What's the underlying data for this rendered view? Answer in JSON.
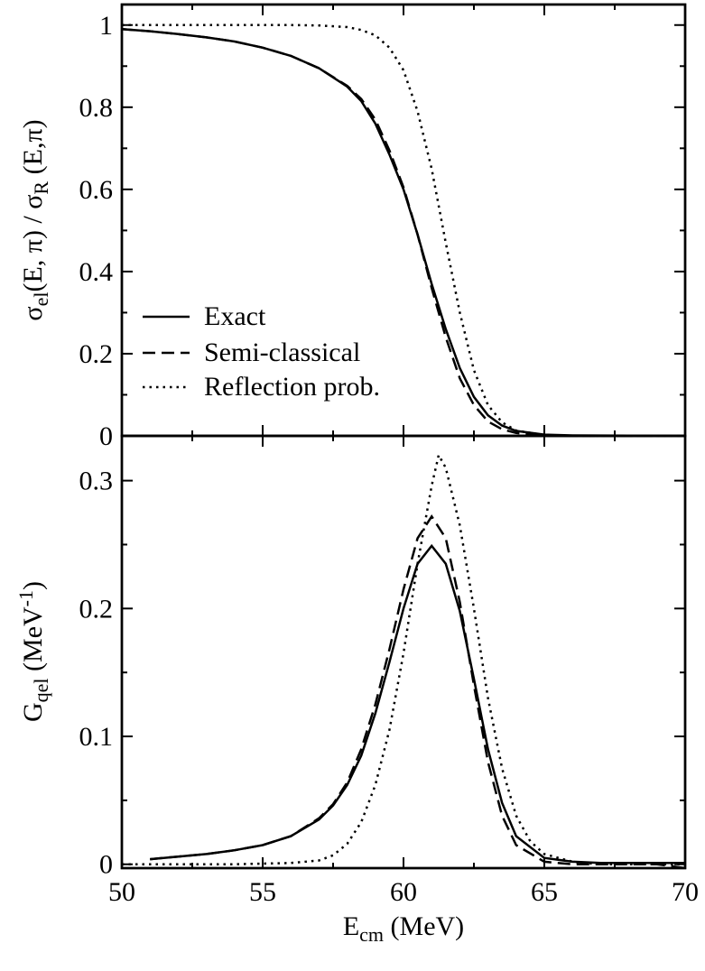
{
  "chart_data": [
    {
      "type": "line",
      "ylabel_parts": [
        "σ",
        "el",
        "(E, π) / σ",
        "R",
        " (E,π)"
      ],
      "xlim": [
        50,
        70
      ],
      "ylim": [
        0,
        1.05
      ],
      "yticks": [
        0,
        0.2,
        0.4,
        0.6,
        0.8,
        1
      ],
      "ytick_labels": [
        "0",
        "0.2",
        "0.4",
        "0.6",
        "0.8",
        "1"
      ],
      "legend_position": "lower-left",
      "series": [
        {
          "name": "Exact",
          "style": "solid",
          "x": [
            50,
            51,
            52,
            53,
            54,
            55,
            56,
            57,
            58,
            58.5,
            59,
            59.5,
            60,
            60.5,
            61,
            61.5,
            62,
            62.5,
            63,
            63.5,
            64,
            65,
            66,
            70
          ],
          "y": [
            0.99,
            0.985,
            0.978,
            0.97,
            0.96,
            0.945,
            0.925,
            0.895,
            0.85,
            0.815,
            0.76,
            0.685,
            0.6,
            0.49,
            0.37,
            0.26,
            0.165,
            0.095,
            0.05,
            0.025,
            0.012,
            0.003,
            0.001,
            0.0
          ]
        },
        {
          "name": "Semi-classical",
          "style": "dashed",
          "x": [
            50,
            51,
            52,
            53,
            54,
            55,
            56,
            57,
            58,
            58.5,
            59,
            59.5,
            60,
            60.5,
            61,
            61.5,
            62,
            62.5,
            63,
            63.5,
            64,
            65,
            66,
            70
          ],
          "y": [
            0.99,
            0.985,
            0.978,
            0.97,
            0.96,
            0.945,
            0.925,
            0.895,
            0.852,
            0.82,
            0.77,
            0.695,
            0.605,
            0.49,
            0.36,
            0.24,
            0.14,
            0.075,
            0.035,
            0.016,
            0.007,
            0.001,
            0.0,
            0.0
          ]
        },
        {
          "name": "Reflection prob.",
          "style": "dotted",
          "x": [
            50,
            52,
            54,
            56,
            57,
            58,
            58.5,
            59,
            59.5,
            60,
            60.5,
            61,
            61.5,
            62,
            62.5,
            63,
            63.5,
            64,
            65,
            66,
            70
          ],
          "y": [
            1.0,
            1.0,
            1.0,
            1.0,
            0.999,
            0.995,
            0.988,
            0.975,
            0.945,
            0.89,
            0.79,
            0.65,
            0.47,
            0.3,
            0.16,
            0.075,
            0.033,
            0.013,
            0.002,
            0.0,
            0.0
          ]
        }
      ]
    },
    {
      "type": "line",
      "xlabel_parts": [
        "E",
        "cm",
        "   (MeV)"
      ],
      "ylabel_parts": [
        "G",
        "qel",
        "   (MeV",
        "-1",
        ")"
      ],
      "xlim": [
        50,
        70
      ],
      "ylim": [
        -0.003,
        0.335
      ],
      "xticks": [
        50,
        55,
        60,
        65,
        70
      ],
      "xtick_labels": [
        "50",
        "55",
        "60",
        "65",
        "70"
      ],
      "yticks": [
        0,
        0.1,
        0.2,
        0.3
      ],
      "ytick_labels": [
        "0",
        "0.1",
        "0.2",
        "0.3"
      ],
      "series": [
        {
          "name": "Exact",
          "style": "solid",
          "x": [
            51,
            52,
            53,
            54,
            55,
            56,
            57,
            57.5,
            58,
            58.5,
            59,
            59.5,
            60,
            60.5,
            61,
            61.5,
            62,
            62.5,
            63,
            63.5,
            64,
            65,
            66,
            67,
            68,
            69,
            70
          ],
          "y": [
            0.004,
            0.006,
            0.008,
            0.011,
            0.015,
            0.022,
            0.035,
            0.046,
            0.062,
            0.085,
            0.118,
            0.158,
            0.2,
            0.235,
            0.249,
            0.235,
            0.198,
            0.145,
            0.09,
            0.048,
            0.022,
            0.005,
            0.002,
            0.001,
            0.001,
            0.001,
            0.001
          ]
        },
        {
          "name": "Semi-classical",
          "style": "dashed",
          "x": [
            51,
            52,
            53,
            54,
            55,
            56,
            57,
            57.5,
            58,
            58.5,
            59,
            59.5,
            60,
            60.5,
            61,
            61.5,
            62,
            62.5,
            63,
            63.5,
            64,
            65,
            66,
            67,
            68,
            69,
            70
          ],
          "y": [
            0.004,
            0.006,
            0.008,
            0.011,
            0.015,
            0.022,
            0.036,
            0.047,
            0.064,
            0.09,
            0.125,
            0.168,
            0.215,
            0.255,
            0.272,
            0.255,
            0.205,
            0.14,
            0.08,
            0.038,
            0.015,
            0.002,
            0.0,
            0.0,
            0.0,
            0.0,
            -0.003
          ]
        },
        {
          "name": "Reflection prob.",
          "style": "dotted",
          "x": [
            50,
            52,
            54,
            56,
            57,
            57.5,
            58,
            58.5,
            59,
            59.5,
            60,
            60.5,
            61,
            61.25,
            61.5,
            62,
            62.5,
            63,
            63.5,
            64,
            64.5,
            65,
            66,
            67,
            70
          ],
          "y": [
            0.0,
            0.0,
            0.0,
            0.001,
            0.003,
            0.007,
            0.016,
            0.033,
            0.062,
            0.105,
            0.165,
            0.235,
            0.296,
            0.32,
            0.31,
            0.265,
            0.2,
            0.13,
            0.075,
            0.038,
            0.018,
            0.008,
            0.002,
            0.0,
            0.0
          ]
        }
      ]
    }
  ]
}
